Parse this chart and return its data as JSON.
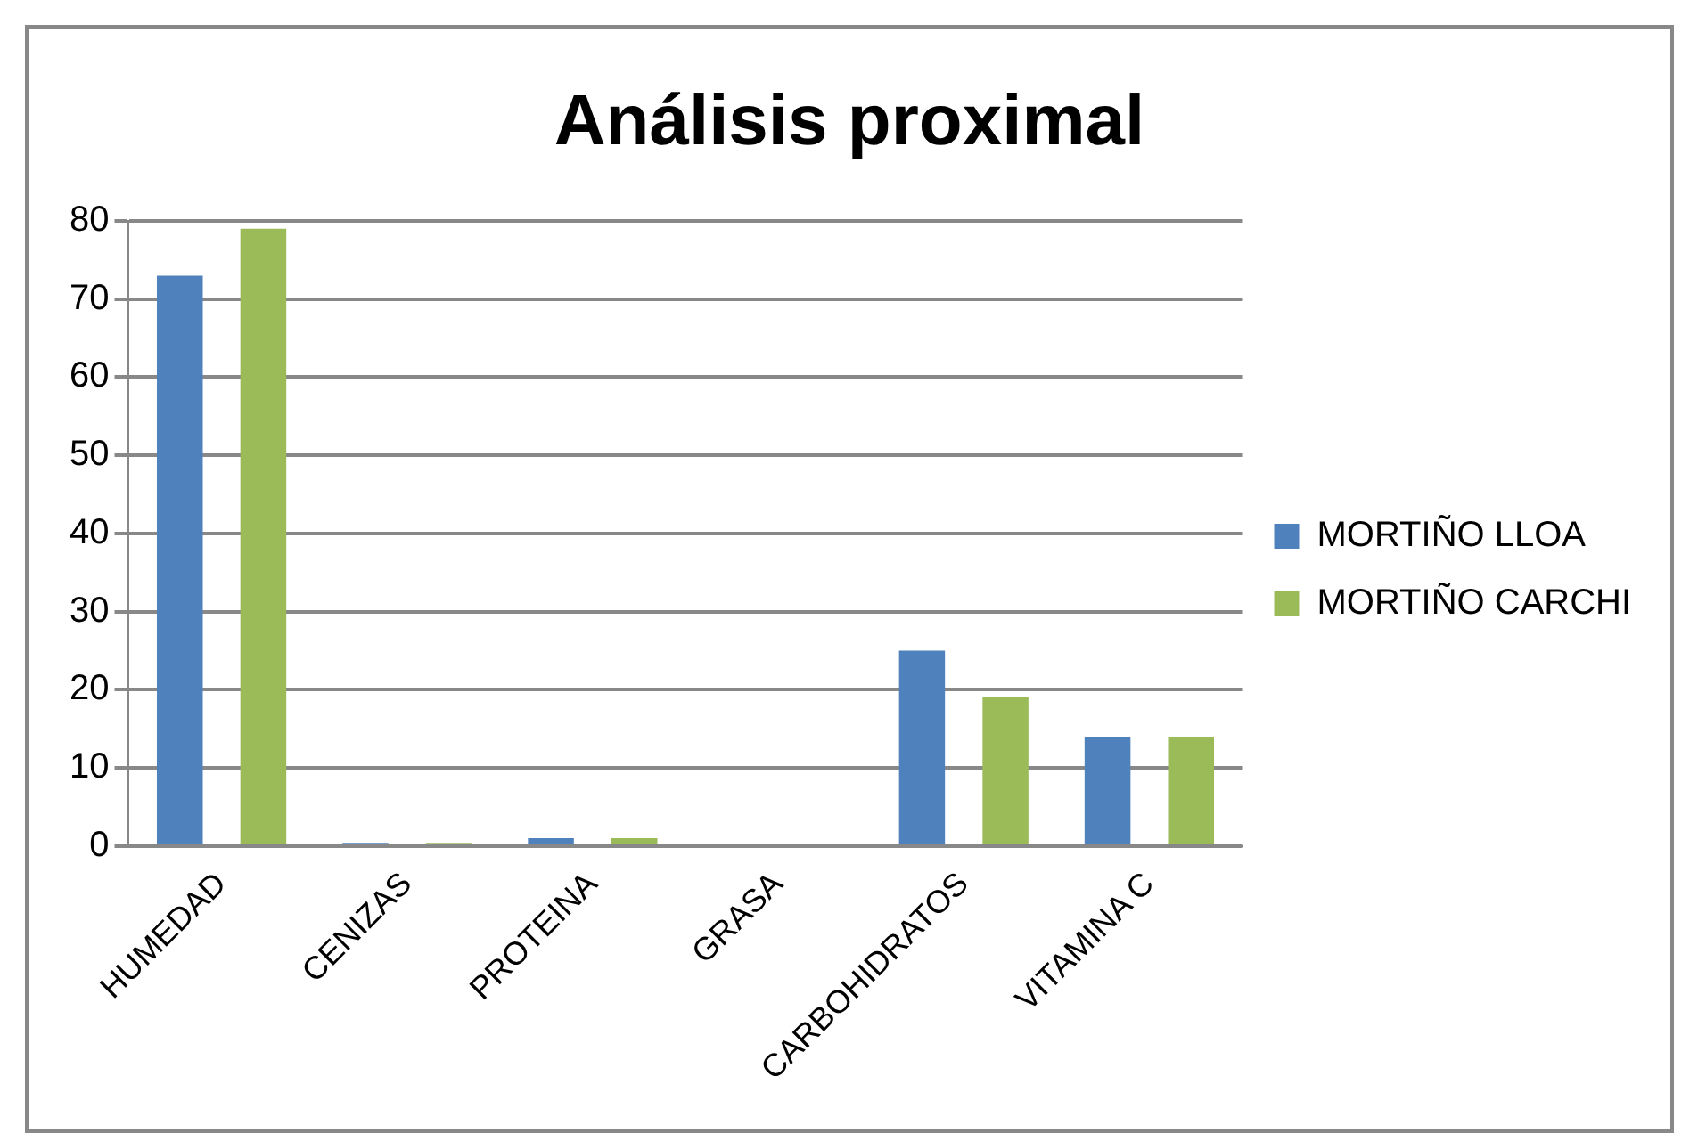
{
  "chart_data": {
    "type": "bar",
    "title": "Análisis proximal",
    "categories": [
      "HUMEDAD",
      "CENIZAS",
      "PROTEINA",
      "GRASA",
      "CARBOHIDRATOS",
      "VITAMINA C"
    ],
    "series": [
      {
        "name": "MORTIÑO LLOA",
        "color": "#4f81bd",
        "values": [
          73,
          0.4,
          1,
          0.3,
          25,
          14
        ]
      },
      {
        "name": "MORTIÑO CARCHI",
        "color": "#9bbb59",
        "values": [
          79,
          0.4,
          1,
          0.3,
          19,
          14
        ]
      }
    ],
    "ylim": [
      0,
      80
    ],
    "yticks": [
      0,
      10,
      20,
      30,
      40,
      50,
      60,
      70,
      80
    ],
    "grid": "y",
    "legend": "right"
  }
}
